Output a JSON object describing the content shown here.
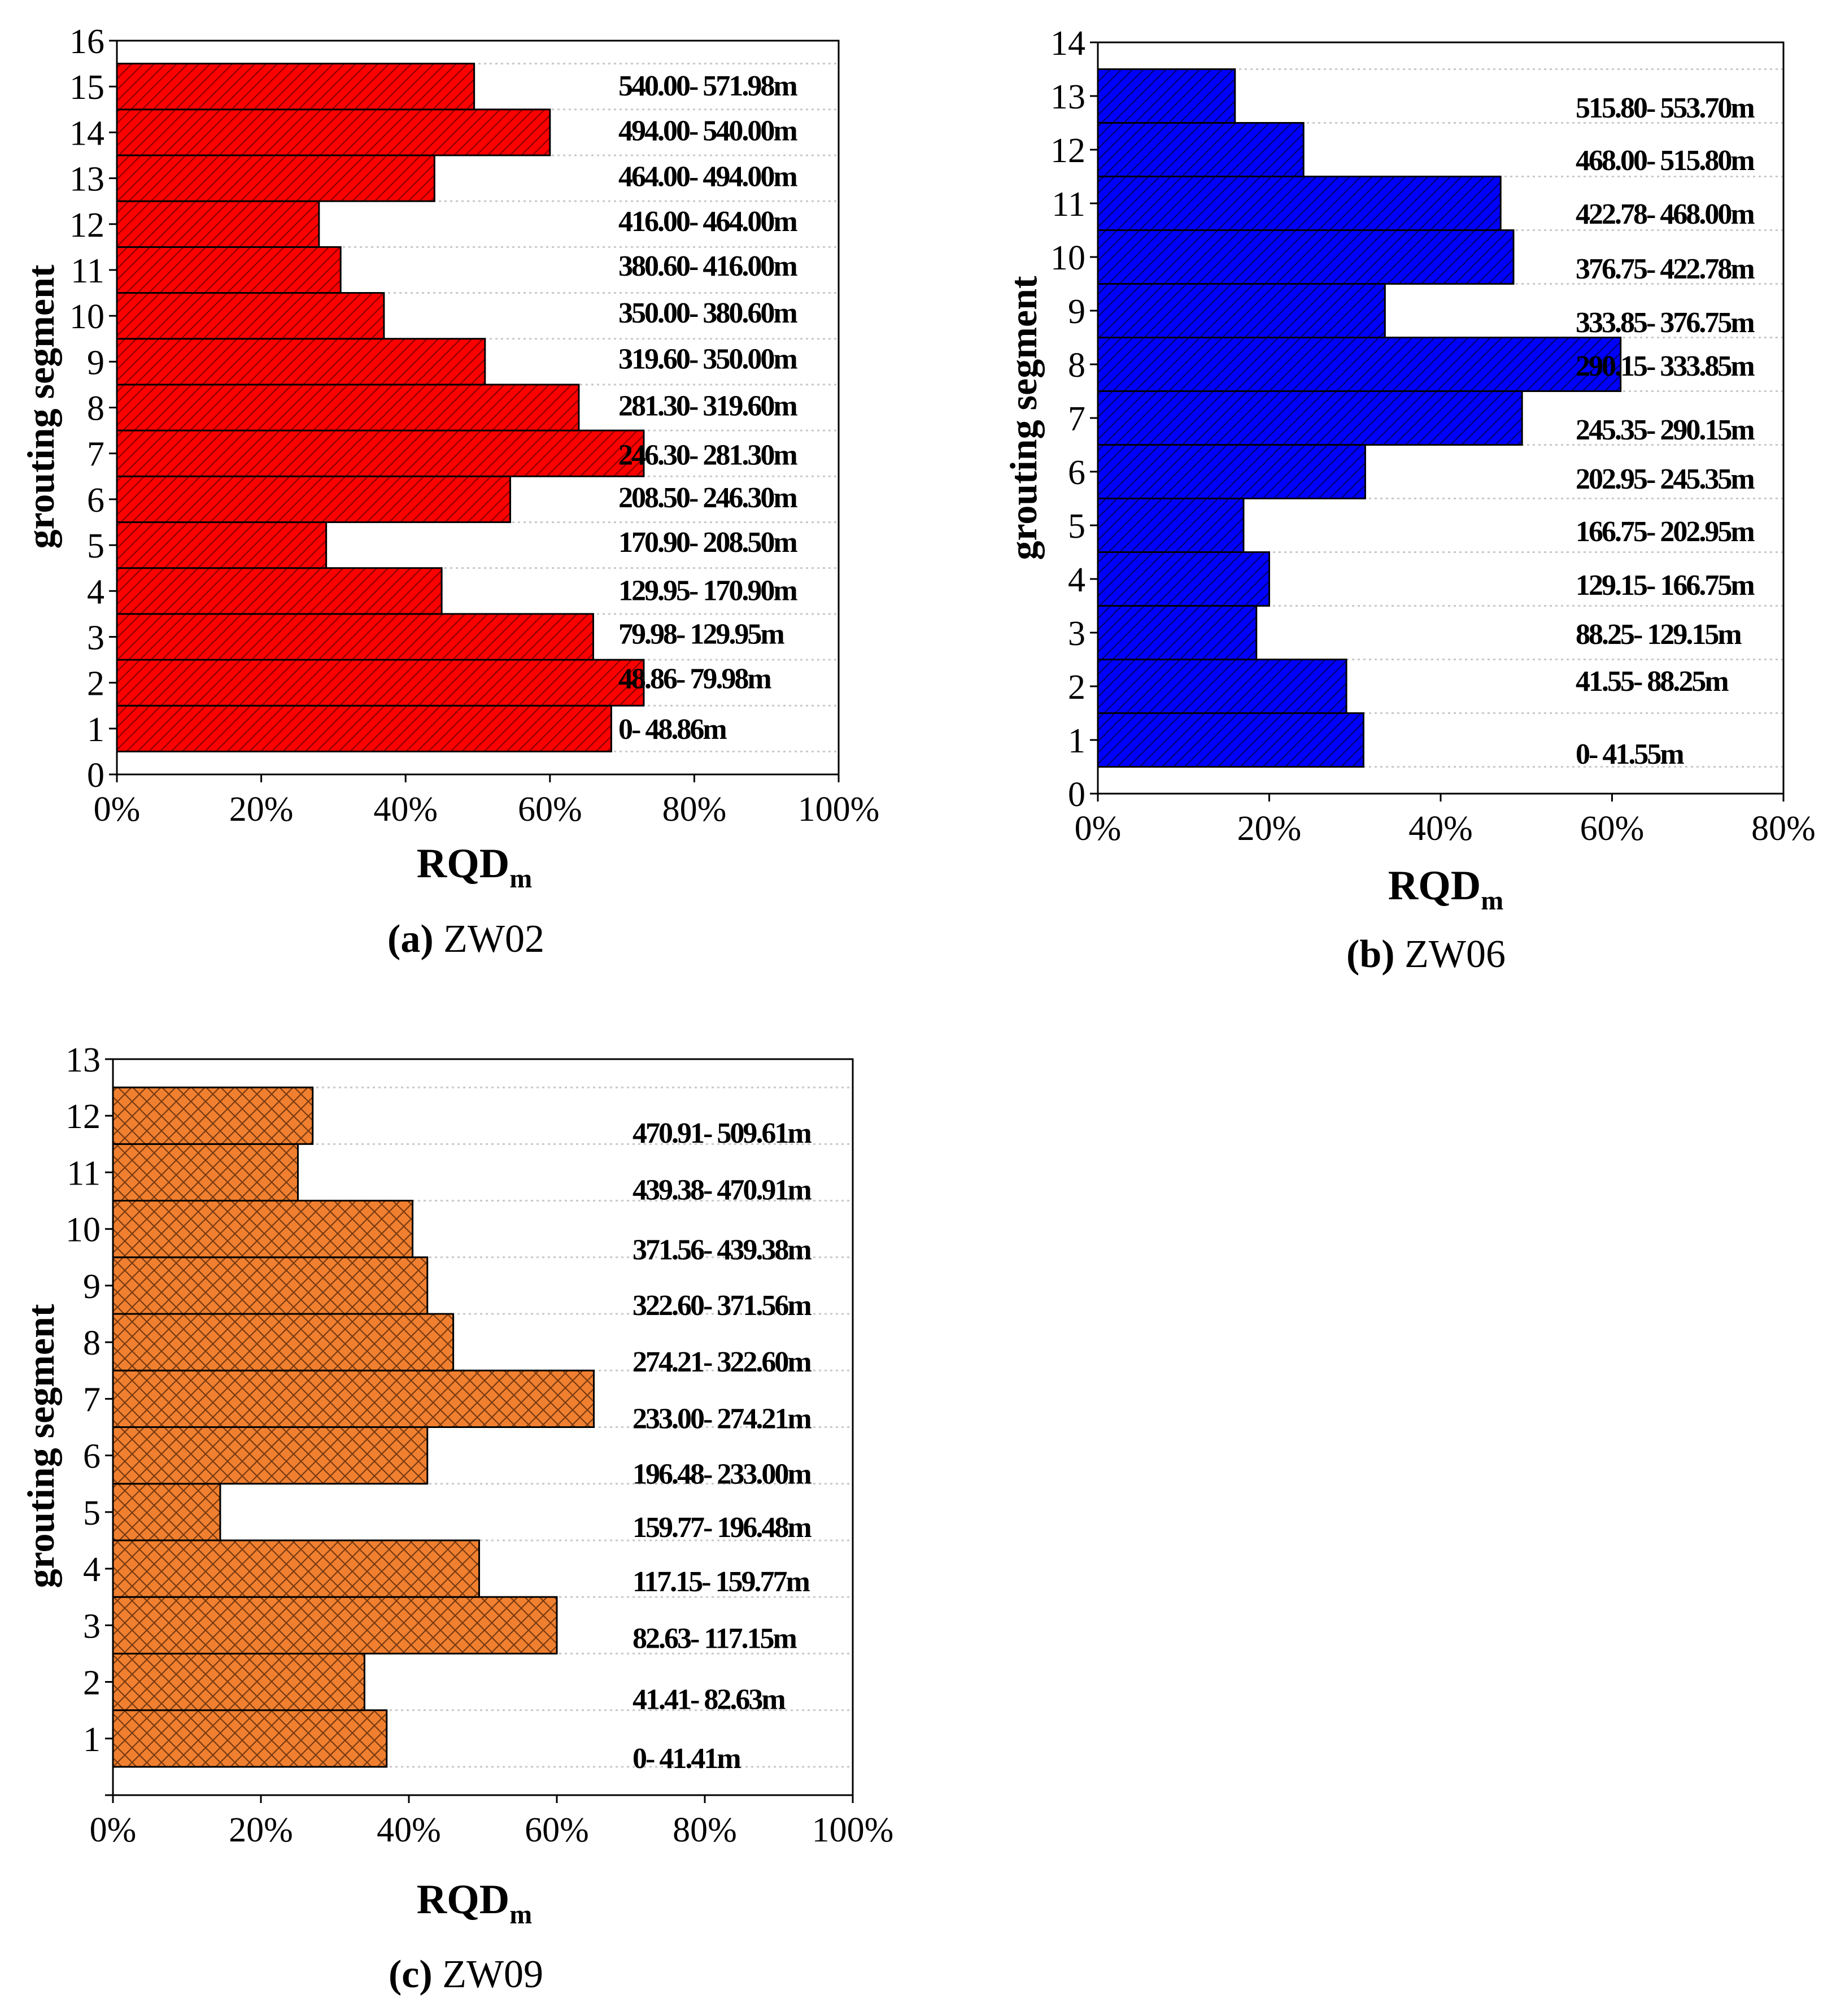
{
  "colors": {
    "zw02_bar": "#ff0000",
    "zw06_bar": "#0000ff",
    "zw09_bar": "#f08030",
    "bar_hatch": "#7a0000",
    "bar_outline": "#000000",
    "grid": "#c8c8c8"
  },
  "chart_data": [
    {
      "type": "bar",
      "orientation": "horizontal",
      "caption_letter": "(a)",
      "caption_name": "ZW02",
      "ylabel": "grouting segment",
      "xlabel": "RQD",
      "xlabel_sub": "m",
      "xlim": [
        0,
        100
      ],
      "xticks": [
        "0%",
        "20%",
        "40%",
        "60%",
        "80%",
        "100%"
      ],
      "ylim": [
        0,
        16
      ],
      "yticks": [
        "0",
        "1",
        "2",
        "3",
        "4",
        "5",
        "6",
        "7",
        "8",
        "9",
        "10",
        "11",
        "12",
        "13",
        "14",
        "15",
        "16"
      ],
      "grid": "dotted horizontal",
      "categories": [
        1,
        2,
        3,
        4,
        5,
        6,
        7,
        8,
        9,
        10,
        11,
        12,
        13,
        14,
        15
      ],
      "values": [
        68.5,
        73,
        66,
        45,
        29,
        54.5,
        73,
        64,
        51,
        37,
        31,
        28,
        44,
        60,
        49.5
      ],
      "segment_labels": [
        "0- 48.86m",
        "48.86- 79.98m",
        "79.98- 129.95m",
        "129.95- 170.90m",
        "170.90- 208.50m",
        "208.50- 246.30m",
        "246.30- 281.30m",
        "281.30- 319.60m",
        "319.60- 350.00m",
        "350.00- 380.60m",
        "380.60- 416.00m",
        "416.00- 464.00m",
        "464.00- 494.00m",
        "494.00- 540.00m",
        "540.00- 571.98m"
      ]
    },
    {
      "type": "bar",
      "orientation": "horizontal",
      "caption_letter": "(b)",
      "caption_name": "ZW06",
      "ylabel": "grouting segment",
      "xlabel": "RQD",
      "xlabel_sub": "m",
      "xlim": [
        0,
        80
      ],
      "xticks": [
        "0%",
        "20%",
        "40%",
        "60%",
        "80%"
      ],
      "ylim": [
        0,
        14
      ],
      "yticks": [
        "0",
        "1",
        "2",
        "3",
        "4",
        "5",
        "6",
        "7",
        "8",
        "9",
        "10",
        "11",
        "12",
        "13",
        "14"
      ],
      "grid": "dotted horizontal",
      "categories": [
        1,
        2,
        3,
        4,
        5,
        6,
        7,
        8,
        9,
        10,
        11,
        12,
        13
      ],
      "values": [
        31,
        29,
        18.5,
        20,
        17,
        31.2,
        49.5,
        61,
        33.5,
        48.5,
        47,
        24,
        16
      ],
      "segment_labels": [
        "0- 41.55m",
        "41.55- 88.25m",
        "88.25- 129.15m",
        "129.15- 166.75m",
        "166.75- 202.95m",
        "202.95- 245.35m",
        "245.35- 290.15m",
        "290.15- 333.85m",
        "333.85- 376.75m",
        "376.75- 422.78m",
        "422.78- 468.00m",
        "468.00- 515.80m",
        "515.80- 553.70m"
      ]
    },
    {
      "type": "bar",
      "orientation": "horizontal",
      "caption_letter": "(c)",
      "caption_name": "ZW09",
      "ylabel": "grouting segment",
      "xlabel": "RQD",
      "xlabel_sub": "m",
      "xlim": [
        0,
        100
      ],
      "xticks": [
        "0%",
        "20%",
        "40%",
        "60%",
        "80%",
        "100%"
      ],
      "ylim": [
        0,
        13
      ],
      "yticks": [
        "1",
        "2",
        "3",
        "4",
        "5",
        "6",
        "7",
        "8",
        "9",
        "10",
        "11",
        "12",
        "13"
      ],
      "grid": "dotted horizontal",
      "categories": [
        1,
        2,
        3,
        4,
        5,
        6,
        7,
        8,
        9,
        10,
        11,
        12
      ],
      "values": [
        37,
        34,
        60,
        49.5,
        14.5,
        42.5,
        65,
        46,
        42.5,
        40.5,
        25,
        27
      ],
      "segment_labels": [
        "0- 41.41m",
        "41.41- 82.63m",
        "82.63- 117.15m",
        "117.15- 159.77m",
        "159.77- 196.48m",
        "196.48- 233.00m",
        "233.00- 274.21m",
        "274.21- 322.60m",
        "322.60- 371.56m",
        "371.56- 439.38m",
        "439.38- 470.91m",
        "470.91- 509.61m"
      ]
    }
  ]
}
